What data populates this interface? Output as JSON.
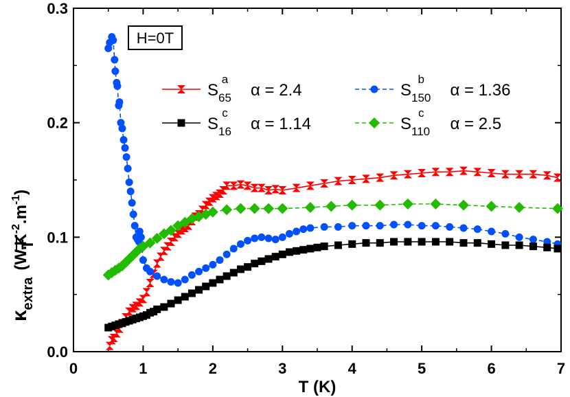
{
  "chart_data": {
    "type": "line",
    "title": "",
    "xlabel": "T (K)",
    "ylabel_parts": {
      "kappa": "κ",
      "subscript": "extra",
      "denom": "T",
      "units_main": "(W.K",
      "units_k_exp": "-2",
      "units_m": ".m",
      "units_m_exp": "-1",
      "units_close": ")"
    },
    "xlim": [
      0,
      7
    ],
    "ylim": [
      0.0,
      0.3
    ],
    "xticks": [
      0,
      1,
      2,
      3,
      4,
      5,
      6,
      7
    ],
    "xtick_labels": [
      "0",
      "1",
      "2",
      "3",
      "4",
      "5",
      "6",
      "7"
    ],
    "yticks": [
      0.0,
      0.1,
      0.2,
      0.3
    ],
    "ytick_labels": [
      "0.0",
      "0.1",
      "0.2",
      "0.3"
    ],
    "annotation": "H=0T",
    "alpha_symbol": "α",
    "series": [
      {
        "id": "s65",
        "name": "S",
        "sub": "65",
        "sup": "a",
        "alpha_label": "= 2.4",
        "color": "#ff0000",
        "marker": "hourglass",
        "dashed": false,
        "points": [
          [
            0.52,
            0.005
          ],
          [
            0.55,
            0.01
          ],
          [
            0.58,
            0.012
          ],
          [
            0.62,
            0.016
          ],
          [
            0.66,
            0.02
          ],
          [
            0.7,
            0.025
          ],
          [
            0.75,
            0.03
          ],
          [
            0.8,
            0.035
          ],
          [
            0.85,
            0.038
          ],
          [
            0.9,
            0.04
          ],
          [
            0.95,
            0.043
          ],
          [
            1.0,
            0.046
          ],
          [
            1.05,
            0.052
          ],
          [
            1.1,
            0.06
          ],
          [
            1.15,
            0.068
          ],
          [
            1.2,
            0.077
          ],
          [
            1.25,
            0.083
          ],
          [
            1.3,
            0.088
          ],
          [
            1.35,
            0.092
          ],
          [
            1.4,
            0.096
          ],
          [
            1.45,
            0.1
          ],
          [
            1.5,
            0.103
          ],
          [
            1.55,
            0.106
          ],
          [
            1.6,
            0.108
          ],
          [
            1.65,
            0.11
          ],
          [
            1.7,
            0.114
          ],
          [
            1.75,
            0.118
          ],
          [
            1.8,
            0.12
          ],
          [
            1.85,
            0.124
          ],
          [
            1.9,
            0.128
          ],
          [
            1.95,
            0.131
          ],
          [
            2.0,
            0.134
          ],
          [
            2.05,
            0.136
          ],
          [
            2.1,
            0.138
          ],
          [
            2.15,
            0.141
          ],
          [
            2.2,
            0.145
          ],
          [
            2.3,
            0.145
          ],
          [
            2.4,
            0.146
          ],
          [
            2.5,
            0.145
          ],
          [
            2.6,
            0.143
          ],
          [
            2.7,
            0.143
          ],
          [
            2.8,
            0.141
          ],
          [
            2.9,
            0.142
          ],
          [
            3.0,
            0.141
          ],
          [
            3.2,
            0.143
          ],
          [
            3.4,
            0.145
          ],
          [
            3.6,
            0.147
          ],
          [
            3.8,
            0.149
          ],
          [
            4.0,
            0.15
          ],
          [
            4.2,
            0.151
          ],
          [
            4.4,
            0.152
          ],
          [
            4.6,
            0.154
          ],
          [
            4.8,
            0.155
          ],
          [
            5.0,
            0.156
          ],
          [
            5.2,
            0.157
          ],
          [
            5.4,
            0.157
          ],
          [
            5.6,
            0.158
          ],
          [
            5.8,
            0.157
          ],
          [
            6.0,
            0.156
          ],
          [
            6.2,
            0.155
          ],
          [
            6.4,
            0.155
          ],
          [
            6.6,
            0.155
          ],
          [
            6.8,
            0.154
          ],
          [
            6.95,
            0.152
          ]
        ]
      },
      {
        "id": "s150",
        "name": "S",
        "sub": "150",
        "sup": "b",
        "alpha_label": "= 1.36",
        "color": "#0050ff",
        "marker": "circle",
        "dashed": true,
        "points": [
          [
            0.5,
            0.265
          ],
          [
            0.52,
            0.27
          ],
          [
            0.55,
            0.275
          ],
          [
            0.57,
            0.272
          ],
          [
            0.59,
            0.255
          ],
          [
            0.6,
            0.245
          ],
          [
            0.62,
            0.235
          ],
          [
            0.63,
            0.232
          ],
          [
            0.65,
            0.215
          ],
          [
            0.66,
            0.218
          ],
          [
            0.68,
            0.2
          ],
          [
            0.7,
            0.195
          ],
          [
            0.72,
            0.185
          ],
          [
            0.74,
            0.178
          ],
          [
            0.76,
            0.17
          ],
          [
            0.78,
            0.16
          ],
          [
            0.8,
            0.148
          ],
          [
            0.82,
            0.14
          ],
          [
            0.84,
            0.13
          ],
          [
            0.86,
            0.12
          ],
          [
            0.88,
            0.11
          ],
          [
            0.9,
            0.1
          ],
          [
            0.92,
            0.098
          ],
          [
            0.94,
            0.096
          ],
          [
            0.95,
            0.105
          ],
          [
            0.97,
            0.1
          ],
          [
            1.0,
            0.08
          ],
          [
            1.05,
            0.073
          ],
          [
            1.1,
            0.07
          ],
          [
            1.2,
            0.066
          ],
          [
            1.3,
            0.063
          ],
          [
            1.4,
            0.061
          ],
          [
            1.5,
            0.06
          ],
          [
            1.6,
            0.063
          ],
          [
            1.7,
            0.067
          ],
          [
            1.8,
            0.07
          ],
          [
            1.9,
            0.073
          ],
          [
            2.0,
            0.076
          ],
          [
            2.1,
            0.08
          ],
          [
            2.2,
            0.085
          ],
          [
            2.3,
            0.09
          ],
          [
            2.4,
            0.094
          ],
          [
            2.5,
            0.097
          ],
          [
            2.6,
            0.099
          ],
          [
            2.7,
            0.1
          ],
          [
            2.8,
            0.099
          ],
          [
            2.9,
            0.098
          ],
          [
            3.0,
            0.1
          ],
          [
            3.1,
            0.103
          ],
          [
            3.2,
            0.105
          ],
          [
            3.3,
            0.107
          ],
          [
            3.4,
            0.108
          ],
          [
            3.6,
            0.109
          ],
          [
            3.8,
            0.109
          ],
          [
            4.0,
            0.11
          ],
          [
            4.2,
            0.11
          ],
          [
            4.4,
            0.11
          ],
          [
            4.6,
            0.111
          ],
          [
            4.8,
            0.111
          ],
          [
            5.0,
            0.11
          ],
          [
            5.2,
            0.11
          ],
          [
            5.4,
            0.109
          ],
          [
            5.6,
            0.108
          ],
          [
            5.8,
            0.107
          ],
          [
            6.0,
            0.105
          ],
          [
            6.2,
            0.103
          ],
          [
            6.4,
            0.1
          ],
          [
            6.6,
            0.098
          ],
          [
            6.8,
            0.096
          ],
          [
            6.95,
            0.094
          ]
        ]
      },
      {
        "id": "s16",
        "name": "S",
        "sub": "16",
        "sup": "c",
        "alpha_label": "= 1.14",
        "color": "#000000",
        "marker": "square",
        "dashed": false,
        "points": [
          [
            0.5,
            0.021
          ],
          [
            0.55,
            0.022
          ],
          [
            0.6,
            0.023
          ],
          [
            0.65,
            0.024
          ],
          [
            0.7,
            0.025
          ],
          [
            0.75,
            0.026
          ],
          [
            0.8,
            0.027
          ],
          [
            0.85,
            0.028
          ],
          [
            0.9,
            0.029
          ],
          [
            0.95,
            0.03
          ],
          [
            1.0,
            0.031
          ],
          [
            1.05,
            0.032
          ],
          [
            1.1,
            0.034
          ],
          [
            1.15,
            0.035
          ],
          [
            1.2,
            0.037
          ],
          [
            1.3,
            0.039
          ],
          [
            1.4,
            0.042
          ],
          [
            1.5,
            0.045
          ],
          [
            1.6,
            0.048
          ],
          [
            1.7,
            0.051
          ],
          [
            1.8,
            0.054
          ],
          [
            1.9,
            0.057
          ],
          [
            2.0,
            0.06
          ],
          [
            2.1,
            0.063
          ],
          [
            2.2,
            0.066
          ],
          [
            2.3,
            0.069
          ],
          [
            2.4,
            0.072
          ],
          [
            2.5,
            0.074
          ],
          [
            2.6,
            0.077
          ],
          [
            2.7,
            0.079
          ],
          [
            2.8,
            0.081
          ],
          [
            2.9,
            0.083
          ],
          [
            3.0,
            0.085
          ],
          [
            3.1,
            0.087
          ],
          [
            3.2,
            0.088
          ],
          [
            3.3,
            0.089
          ],
          [
            3.4,
            0.09
          ],
          [
            3.5,
            0.091
          ],
          [
            3.6,
            0.092
          ],
          [
            3.8,
            0.093
          ],
          [
            4.0,
            0.094
          ],
          [
            4.2,
            0.095
          ],
          [
            4.4,
            0.095
          ],
          [
            4.6,
            0.096
          ],
          [
            4.8,
            0.096
          ],
          [
            5.0,
            0.096
          ],
          [
            5.2,
            0.096
          ],
          [
            5.4,
            0.096
          ],
          [
            5.6,
            0.095
          ],
          [
            5.8,
            0.095
          ],
          [
            6.0,
            0.094
          ],
          [
            6.2,
            0.093
          ],
          [
            6.4,
            0.093
          ],
          [
            6.6,
            0.092
          ],
          [
            6.8,
            0.091
          ],
          [
            6.95,
            0.09
          ]
        ]
      },
      {
        "id": "s110",
        "name": "S",
        "sub": "110",
        "sup": "c",
        "alpha_label": "= 2.5",
        "color": "#22bb00",
        "marker": "diamond",
        "dashed": true,
        "points": [
          [
            0.5,
            0.067
          ],
          [
            0.55,
            0.069
          ],
          [
            0.6,
            0.071
          ],
          [
            0.65,
            0.073
          ],
          [
            0.7,
            0.075
          ],
          [
            0.75,
            0.078
          ],
          [
            0.8,
            0.081
          ],
          [
            0.85,
            0.084
          ],
          [
            0.9,
            0.087
          ],
          [
            0.95,
            0.09
          ],
          [
            1.0,
            0.092
          ],
          [
            1.1,
            0.095
          ],
          [
            1.2,
            0.099
          ],
          [
            1.3,
            0.103
          ],
          [
            1.4,
            0.106
          ],
          [
            1.5,
            0.11
          ],
          [
            1.6,
            0.113
          ],
          [
            1.7,
            0.116
          ],
          [
            1.8,
            0.118
          ],
          [
            1.9,
            0.12
          ],
          [
            2.0,
            0.122
          ],
          [
            2.2,
            0.124
          ],
          [
            2.4,
            0.125
          ],
          [
            2.6,
            0.125
          ],
          [
            2.8,
            0.125
          ],
          [
            3.0,
            0.125
          ],
          [
            3.4,
            0.126
          ],
          [
            3.7,
            0.127
          ],
          [
            4.0,
            0.128
          ],
          [
            4.4,
            0.128
          ],
          [
            4.8,
            0.129
          ],
          [
            5.2,
            0.129
          ],
          [
            5.6,
            0.128
          ],
          [
            6.0,
            0.127
          ],
          [
            6.4,
            0.126
          ],
          [
            6.95,
            0.125
          ]
        ]
      }
    ]
  }
}
